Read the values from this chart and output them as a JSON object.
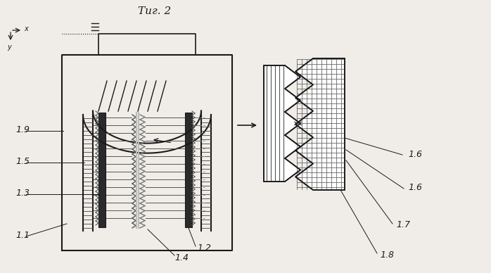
{
  "fig_label": "Τиг. 2",
  "bg_color": "#f0ede8",
  "line_color": "#1a1a1a",
  "dark_color": "#2a2a2a",
  "gray_color": "#666666",
  "light_gray": "#aaaaaa"
}
